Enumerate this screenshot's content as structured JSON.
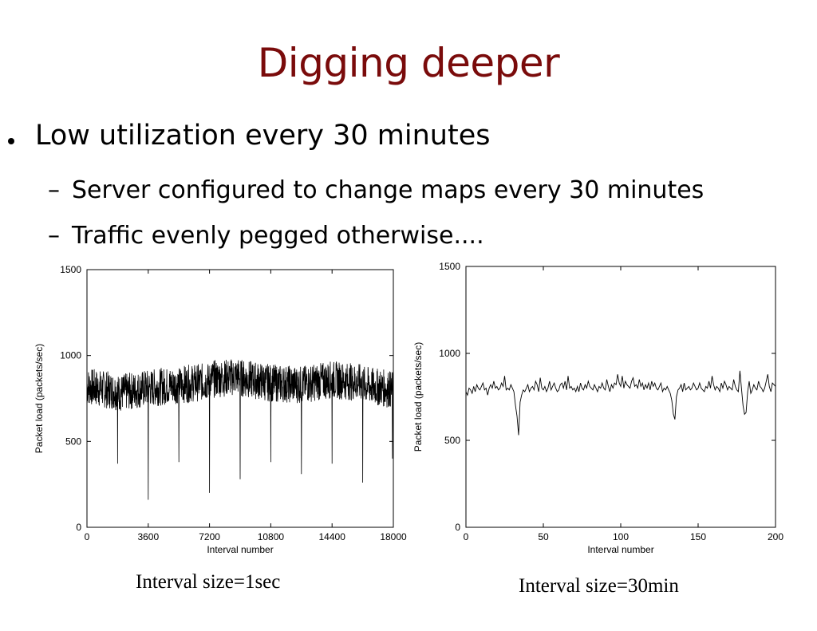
{
  "slide": {
    "title": "Digging deeper",
    "bullet": "Low utilization every 30 minutes",
    "subbullets": [
      "Server configured to change maps every 30 minutes",
      "Traffic evenly pegged otherwise...."
    ],
    "dash_glyph": "–"
  },
  "colors": {
    "title": "#7a0b0b",
    "line": "#000000"
  },
  "chart_data": [
    {
      "type": "line",
      "xlabel": "Interval number",
      "ylabel": "Packet load (packets/sec)",
      "xlim": [
        0,
        18000
      ],
      "ylim": [
        0,
        1500
      ],
      "xticks": [
        0,
        3600,
        7200,
        10800,
        14400,
        18000
      ],
      "yticks": [
        0,
        500,
        1000,
        1500
      ],
      "caption": "Interval size=1sec",
      "baseline_segments": [
        {
          "x": [
            0,
            1800
          ],
          "y": [
            820,
            790
          ]
        },
        {
          "x": [
            1800,
            3600
          ],
          "y": [
            780,
            810
          ]
        },
        {
          "x": [
            3600,
            5400
          ],
          "y": [
            810,
            830
          ]
        },
        {
          "x": [
            5400,
            7200
          ],
          "y": [
            830,
            850
          ]
        },
        {
          "x": [
            7200,
            9000
          ],
          "y": [
            860,
            880
          ]
        },
        {
          "x": [
            9000,
            10800
          ],
          "y": [
            870,
            840
          ]
        },
        {
          "x": [
            10800,
            12600
          ],
          "y": [
            840,
            830
          ]
        },
        {
          "x": [
            12600,
            14400
          ],
          "y": [
            830,
            860
          ]
        },
        {
          "x": [
            14400,
            16200
          ],
          "y": [
            860,
            840
          ]
        },
        {
          "x": [
            16200,
            18000
          ],
          "y": [
            830,
            800
          ]
        }
      ],
      "noise_amplitude": 110,
      "dips": [
        {
          "x": 1800,
          "y": 370
        },
        {
          "x": 3600,
          "y": 160
        },
        {
          "x": 5400,
          "y": 380
        },
        {
          "x": 7200,
          "y": 200
        },
        {
          "x": 9000,
          "y": 280
        },
        {
          "x": 10800,
          "y": 380
        },
        {
          "x": 12600,
          "y": 310
        },
        {
          "x": 14400,
          "y": 370
        },
        {
          "x": 16200,
          "y": 260
        },
        {
          "x": 17950,
          "y": 400
        }
      ]
    },
    {
      "type": "line",
      "xlabel": "Interval number",
      "ylabel": "Packet load (packets/sec)",
      "xlim": [
        0,
        200
      ],
      "ylim": [
        0,
        1500
      ],
      "xticks": [
        0,
        50,
        100,
        150,
        200
      ],
      "yticks": [
        0,
        500,
        1000,
        1500
      ],
      "caption": "Interval size=30min",
      "x": [
        0,
        1,
        2,
        3,
        4,
        5,
        6,
        7,
        8,
        9,
        10,
        11,
        12,
        13,
        14,
        15,
        16,
        17,
        18,
        19,
        20,
        21,
        22,
        23,
        24,
        25,
        26,
        27,
        28,
        29,
        30,
        31,
        32,
        33,
        34,
        35,
        36,
        37,
        38,
        39,
        40,
        41,
        42,
        43,
        44,
        45,
        46,
        47,
        48,
        49,
        50,
        51,
        52,
        53,
        54,
        55,
        56,
        57,
        58,
        59,
        60,
        61,
        62,
        63,
        64,
        65,
        66,
        67,
        68,
        69,
        70,
        71,
        72,
        73,
        74,
        75,
        76,
        77,
        78,
        79,
        80,
        81,
        82,
        83,
        84,
        85,
        86,
        87,
        88,
        89,
        90,
        91,
        92,
        93,
        94,
        95,
        96,
        97,
        98,
        99,
        100,
        101,
        102,
        103,
        104,
        105,
        106,
        107,
        108,
        109,
        110,
        111,
        112,
        113,
        114,
        115,
        116,
        117,
        118,
        119,
        120,
        121,
        122,
        123,
        124,
        125,
        126,
        127,
        128,
        129,
        130,
        131,
        132,
        133,
        134,
        135,
        136,
        137,
        138,
        139,
        140,
        141,
        142,
        143,
        144,
        145,
        146,
        147,
        148,
        149,
        150,
        151,
        152,
        153,
        154,
        155,
        156,
        157,
        158,
        159,
        160,
        161,
        162,
        163,
        164,
        165,
        166,
        167,
        168,
        169,
        170,
        171,
        172,
        173,
        174,
        175,
        176,
        177,
        178,
        179,
        180,
        181,
        182,
        183,
        184,
        185,
        186,
        187,
        188,
        189,
        190,
        191,
        192,
        193,
        194,
        195,
        196,
        197,
        198,
        199,
        200
      ],
      "y": [
        780,
        760,
        800,
        790,
        770,
        810,
        780,
        820,
        800,
        790,
        810,
        830,
        790,
        800,
        760,
        800,
        820,
        800,
        840,
        800,
        810,
        790,
        800,
        830,
        810,
        870,
        790,
        800,
        790,
        820,
        800,
        780,
        700,
        640,
        530,
        720,
        760,
        790,
        780,
        800,
        820,
        780,
        800,
        810,
        790,
        840,
        820,
        780,
        860,
        800,
        790,
        810,
        780,
        800,
        840,
        790,
        810,
        830,
        800,
        780,
        790,
        820,
        830,
        800,
        840,
        790,
        870,
        800,
        810,
        790,
        800,
        780,
        810,
        780,
        830,
        800,
        790,
        820,
        800,
        840,
        810,
        800,
        790,
        820,
        800,
        780,
        810,
        800,
        830,
        800,
        790,
        850,
        810,
        780,
        820,
        800,
        830,
        820,
        880,
        830,
        810,
        870,
        800,
        840,
        820,
        810,
        800,
        840,
        860,
        810,
        820,
        800,
        850,
        810,
        830,
        790,
        820,
        800,
        830,
        790,
        840,
        810,
        830,
        800,
        790,
        810,
        830,
        780,
        800,
        790,
        810,
        790,
        770,
        730,
        650,
        620,
        750,
        790,
        800,
        820,
        780,
        830,
        790,
        800,
        810,
        790,
        800,
        830,
        810,
        790,
        800,
        830,
        800,
        790,
        780,
        810,
        800,
        840,
        800,
        870,
        820,
        790,
        810,
        800,
        780,
        830,
        800,
        840,
        820,
        790,
        810,
        800,
        790,
        850,
        810,
        790,
        780,
        900,
        800,
        700,
        650,
        660,
        780,
        840,
        770,
        790,
        820,
        800,
        790,
        840,
        810,
        800,
        780,
        800,
        840,
        880,
        810,
        780,
        830,
        820,
        810
      ]
    }
  ]
}
